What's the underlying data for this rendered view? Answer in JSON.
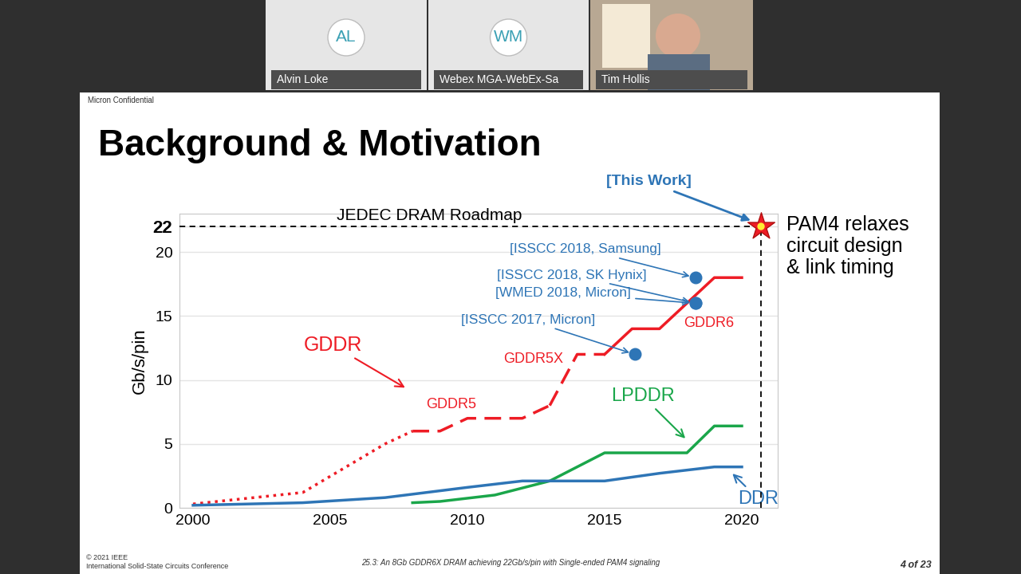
{
  "meeting": {
    "participants": [
      {
        "initials": "AL",
        "name": "Alvin Loke"
      },
      {
        "initials": "WM",
        "name": "Webex MGA-WebEx-Sa"
      },
      {
        "name": "Tim Hollis"
      }
    ]
  },
  "slide": {
    "confidential": "Micron Confidential",
    "title": "Background & Motivation",
    "footer_left": "© 2021 IEEE\nInternational Solid-State Circuits Conference",
    "footer_center": "25.3: An 8Gb GDDR6X DRAM achieving 22Gb/s/pin with Single-ended PAM4 signaling",
    "page": "4 of 23"
  },
  "chart_data": {
    "type": "line",
    "y_label": "Gb/s/pin",
    "xlim": [
      1999.5,
      2021.3
    ],
    "xticks": [
      2000,
      2005,
      2010,
      2015,
      2020
    ],
    "ylim": [
      0,
      23
    ],
    "yticks": [
      0,
      5,
      10,
      15,
      20,
      22
    ],
    "grid": true,
    "roadmap": {
      "label": "JEDEC DRAM Roadmap",
      "value": 22
    },
    "series": [
      {
        "name": "GDDR",
        "color": "#ee1c25",
        "line_style": "dotted",
        "x": [
          2000,
          2004,
          2007,
          2008
        ],
        "values": [
          0.3,
          1.2,
          5,
          6
        ]
      },
      {
        "name": "GDDR5",
        "color": "#ee1c25",
        "line_style": "dashed",
        "x": [
          2008,
          2009,
          2010,
          2012,
          2013
        ],
        "values": [
          6,
          6,
          7,
          7,
          8
        ]
      },
      {
        "name": "GDDR5X",
        "color": "#ee1c25",
        "line_style": "dashed",
        "x": [
          2013,
          2014,
          2015
        ],
        "values": [
          8,
          12,
          12
        ]
      },
      {
        "name": "GDDR6",
        "color": "#ee1c25",
        "line_style": "solid",
        "x": [
          2015,
          2016,
          2017,
          2019,
          2020
        ],
        "values": [
          12,
          14,
          14,
          18,
          18
        ]
      },
      {
        "name": "LPDDR",
        "color": "#1aa64a",
        "line_style": "solid",
        "x": [
          2008,
          2009,
          2011,
          2013,
          2015,
          2018,
          2019,
          2020
        ],
        "values": [
          0.4,
          0.5,
          1,
          2.1,
          4.3,
          4.3,
          6.4,
          6.4
        ]
      },
      {
        "name": "DDR",
        "color": "#2e75b6",
        "line_style": "solid",
        "x": [
          2000,
          2004,
          2007,
          2010,
          2012,
          2015,
          2017,
          2019,
          2020
        ],
        "values": [
          0.2,
          0.4,
          0.8,
          1.6,
          2.1,
          2.1,
          2.7,
          3.2,
          3.2
        ]
      }
    ],
    "markers": {
      "color": "#2e75b6",
      "marker": "circle",
      "points": [
        {
          "label": "[ISSCC 2018, Samsung]",
          "x": 2018.3,
          "y": 18
        },
        {
          "label": "[ISSCC 2018, SK Hynix]",
          "x": 2018.3,
          "y": 16
        },
        {
          "label": "[WMED 2018, Micron]",
          "x": 2018.3,
          "y": 16
        },
        {
          "label": "[ISSCC 2017, Micron]",
          "x": 2016.1,
          "y": 12
        }
      ]
    },
    "this_work": {
      "label": "[This Work]",
      "x": 2020.7,
      "y": 22,
      "marker": "star",
      "color": "#ee1c25"
    },
    "note": "PAM4 relaxes\ncircuit design\n& link timing"
  }
}
